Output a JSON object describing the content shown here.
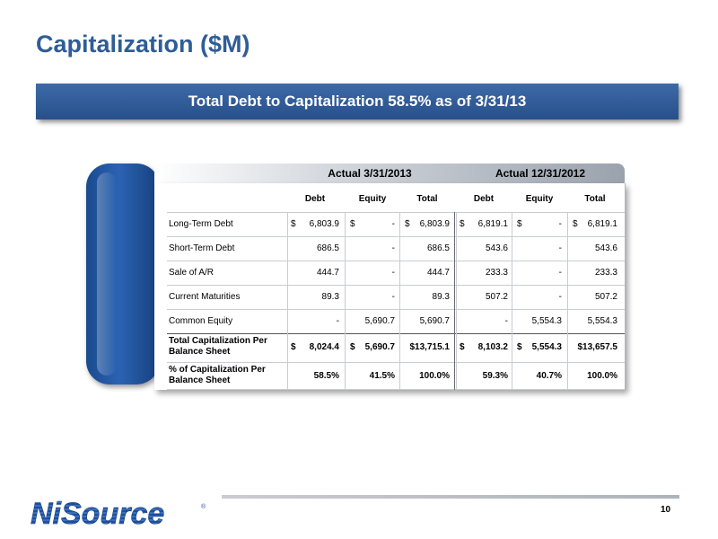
{
  "slide": {
    "title": "Capitalization ($M)",
    "banner": "Total Debt to Capitalization 58.5% as of 3/31/13",
    "page_number": "10",
    "logo_text": "NiSource",
    "colors": {
      "title": "#2f5d96",
      "banner": "#2e5a99",
      "tab": "#1f55a3"
    }
  },
  "table": {
    "periods": [
      "Actual 3/31/2013",
      "Actual 12/31/2012"
    ],
    "columns": [
      "Debt",
      "Equity",
      "Total",
      "Debt",
      "Equity",
      "Total"
    ],
    "rows": [
      {
        "label": "Long-Term Debt",
        "cells": [
          {
            "sym": "$",
            "num": "6,803.9"
          },
          {
            "sym": "$",
            "num": "-"
          },
          {
            "sym": "$",
            "num": "6,803.9"
          },
          {
            "sym": "$",
            "num": "6,819.1"
          },
          {
            "sym": "$",
            "num": "-"
          },
          {
            "sym": "$",
            "num": "6,819.1"
          }
        ]
      },
      {
        "label": "Short-Term Debt",
        "cells": [
          {
            "sym": "",
            "num": "686.5"
          },
          {
            "sym": "",
            "num": "-"
          },
          {
            "sym": "",
            "num": "686.5"
          },
          {
            "sym": "",
            "num": "543.6"
          },
          {
            "sym": "",
            "num": "-"
          },
          {
            "sym": "",
            "num": "543.6"
          }
        ]
      },
      {
        "label": "Sale of A/R",
        "cells": [
          {
            "sym": "",
            "num": "444.7"
          },
          {
            "sym": "",
            "num": "-"
          },
          {
            "sym": "",
            "num": "444.7"
          },
          {
            "sym": "",
            "num": "233.3"
          },
          {
            "sym": "",
            "num": "-"
          },
          {
            "sym": "",
            "num": "233.3"
          }
        ]
      },
      {
        "label": "Current Maturities",
        "cells": [
          {
            "sym": "",
            "num": "89.3"
          },
          {
            "sym": "",
            "num": "-"
          },
          {
            "sym": "",
            "num": "89.3"
          },
          {
            "sym": "",
            "num": "507.2"
          },
          {
            "sym": "",
            "num": "-"
          },
          {
            "sym": "",
            "num": "507.2"
          }
        ]
      },
      {
        "label": "Common Equity",
        "cells": [
          {
            "sym": "",
            "num": "-"
          },
          {
            "sym": "",
            "num": "5,690.7"
          },
          {
            "sym": "",
            "num": "5,690.7"
          },
          {
            "sym": "",
            "num": "-"
          },
          {
            "sym": "",
            "num": "5,554.3"
          },
          {
            "sym": "",
            "num": "5,554.3"
          }
        ]
      },
      {
        "label": "Total Capitalization Per Balance Sheet",
        "bold": true,
        "cells": [
          {
            "sym": "$",
            "num": "8,024.4"
          },
          {
            "sym": "$",
            "num": "5,690.7"
          },
          {
            "sym": "",
            "num": "$13,715.1"
          },
          {
            "sym": "$",
            "num": "8,103.2"
          },
          {
            "sym": "$",
            "num": "5,554.3"
          },
          {
            "sym": "",
            "num": "$13,657.5"
          }
        ]
      },
      {
        "label": "% of Capitalization Per Balance Sheet",
        "bold": true,
        "cells": [
          {
            "sym": "",
            "num": "58.5%"
          },
          {
            "sym": "",
            "num": "41.5%"
          },
          {
            "sym": "",
            "num": "100.0%"
          },
          {
            "sym": "",
            "num": "59.3%"
          },
          {
            "sym": "",
            "num": "40.7%"
          },
          {
            "sym": "",
            "num": "100.0%"
          }
        ]
      }
    ]
  }
}
